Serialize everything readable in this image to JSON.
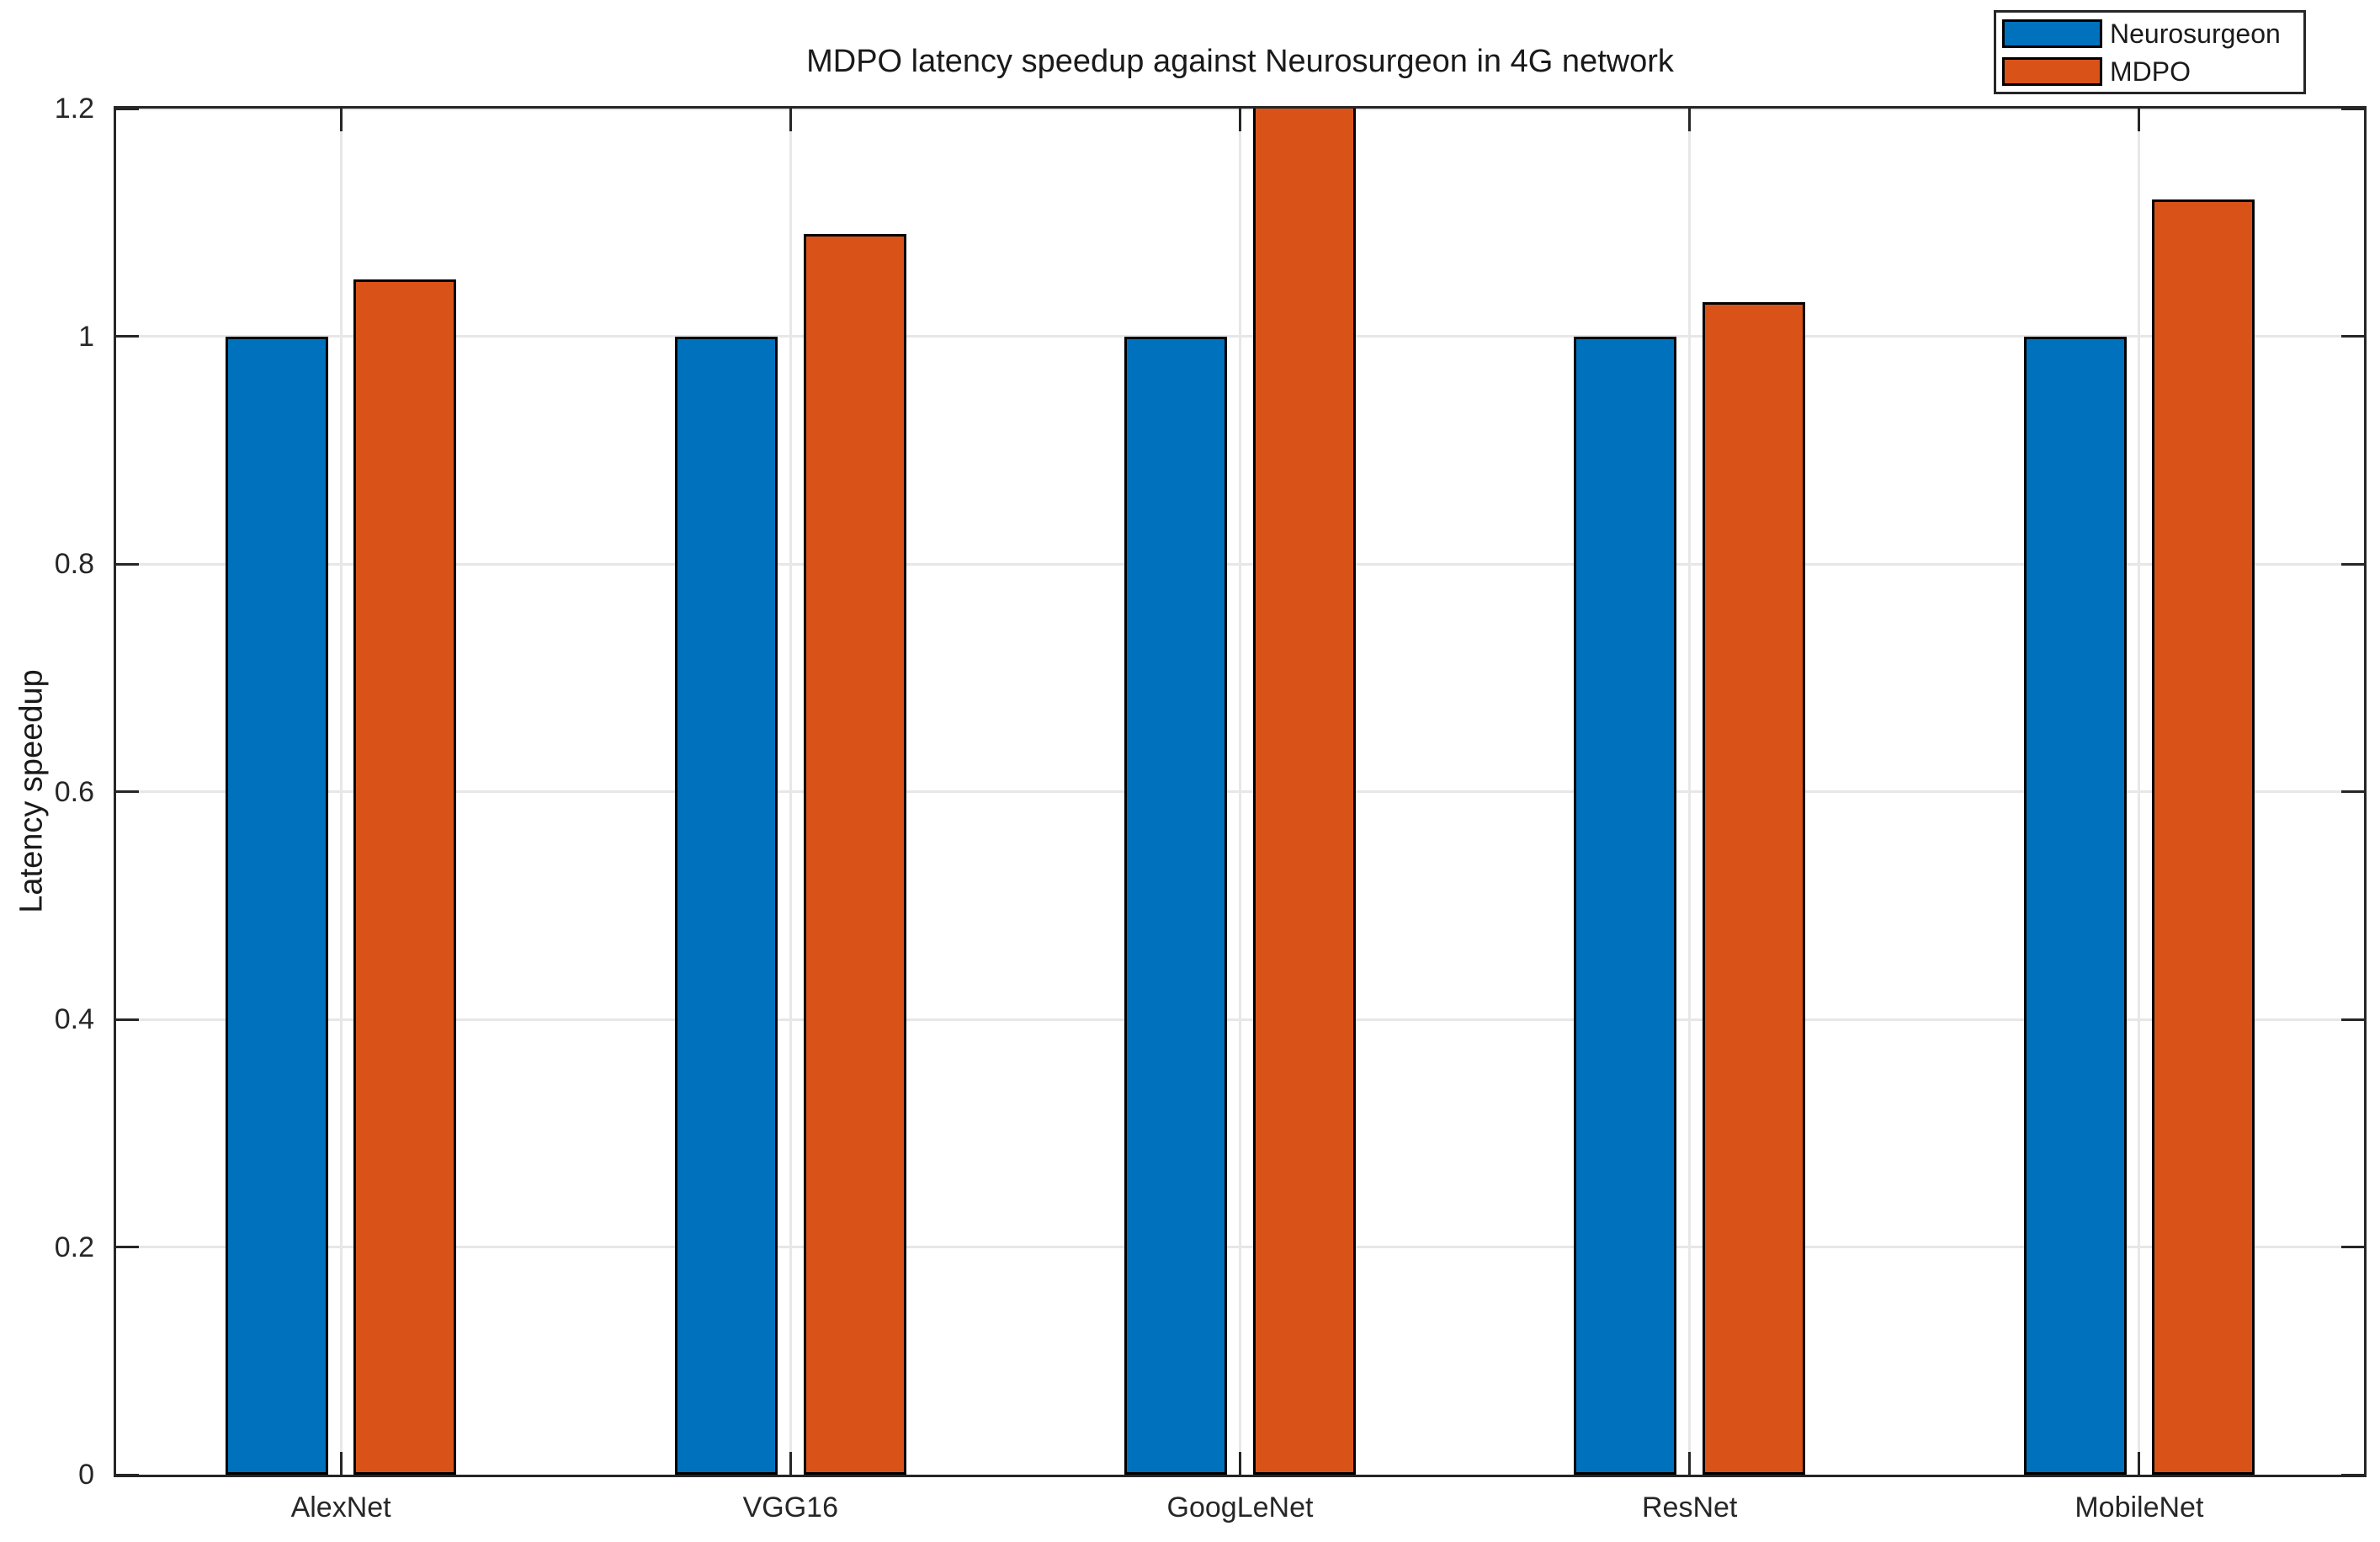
{
  "figure": {
    "background": "#ffffff"
  },
  "chart_data": {
    "type": "bar",
    "title": "MDPO latency speedup against Neurosurgeon in 4G network",
    "xlabel": "",
    "ylabel": "Latency speedup",
    "categories": [
      "AlexNet",
      "VGG16",
      "GoogLeNet",
      "ResNet",
      "MobileNet"
    ],
    "series": [
      {
        "name": "Neurosurgeon",
        "color": "#0072BD",
        "values": [
          1.0,
          1.0,
          1.0,
          1.0,
          1.0
        ],
        "clipped_at_ymax": [
          false,
          false,
          false,
          false,
          false
        ]
      },
      {
        "name": "MDPO",
        "color": "#D95319",
        "values": [
          1.05,
          1.09,
          1.2,
          1.03,
          1.12
        ],
        "clipped_at_ymax": [
          false,
          false,
          true,
          false,
          false
        ]
      }
    ],
    "ylim": [
      0,
      1.2
    ],
    "yticks": [
      0,
      0.2,
      0.4,
      0.6,
      0.8,
      1,
      1.2
    ],
    "ytick_labels": [
      "0",
      "0.2",
      "0.4",
      "0.6",
      "0.8",
      "1",
      "1.2"
    ],
    "grid": true,
    "grid_color": "#e7e7e7",
    "axis_color": "#262626",
    "bar_edge_color": "#000000",
    "legend_position": "top-right-outside",
    "note": "GoogLeNet MDPO bar is clipped at the top of the axes (exceeds y-axis max of 1.2)"
  }
}
